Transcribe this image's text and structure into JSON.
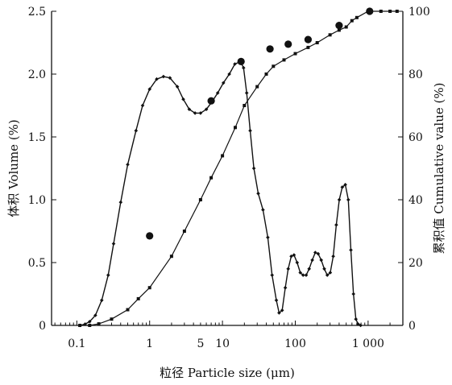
{
  "chart_data": {
    "type": "line",
    "title": "",
    "xlabel": "粒径 Particle size (μm)",
    "ylabel_left": "体积 Volume (%)",
    "ylabel_right": "累积值 Cumulative value (%)",
    "x_scale": "log",
    "xlim": [
      0.045,
      3000
    ],
    "ylim_left": [
      0,
      2.5
    ],
    "ylim_right": [
      0,
      100
    ],
    "grid": false,
    "legend": "none",
    "x_ticks": [
      {
        "value": 0.1,
        "label": "0.1"
      },
      {
        "value": 1,
        "label": "1"
      },
      {
        "value": 5,
        "label": "5"
      },
      {
        "value": 10,
        "label": "10"
      },
      {
        "value": 100,
        "label": "100"
      },
      {
        "value": 1000,
        "label": "1 000"
      }
    ],
    "y_left_ticks": [
      "0",
      "0.5",
      "1.0",
      "1.5",
      "2.0",
      "2.5"
    ],
    "y_left_tick_values": [
      0,
      0.5,
      1.0,
      1.5,
      2.0,
      2.5
    ],
    "y_right_ticks": [
      "0",
      "20",
      "40",
      "60",
      "80",
      "100"
    ],
    "y_right_tick_values": [
      0,
      20,
      40,
      60,
      80,
      100
    ],
    "series": [
      {
        "axis": "left",
        "style": "line-diamond-markers",
        "x": [
          0.11,
          0.13,
          0.15,
          0.18,
          0.22,
          0.27,
          0.32,
          0.4,
          0.5,
          0.65,
          0.8,
          1.0,
          1.25,
          1.55,
          1.9,
          2.4,
          2.9,
          3.5,
          4.2,
          5.0,
          6.0,
          7.2,
          8.6,
          10.3,
          12.4,
          14.8,
          17.7,
          19.5,
          21.5,
          24,
          27,
          31,
          36,
          42,
          48,
          55,
          60,
          66,
          73,
          80,
          88,
          96,
          106,
          117,
          128,
          141,
          155,
          171,
          188,
          206,
          227,
          250,
          275,
          302,
          332,
          366,
          402,
          442,
          486,
          535,
          580,
          630,
          680,
          730,
          790
        ],
        "y": [
          0.0,
          0.01,
          0.03,
          0.08,
          0.2,
          0.4,
          0.65,
          0.98,
          1.28,
          1.55,
          1.75,
          1.88,
          1.96,
          1.98,
          1.97,
          1.9,
          1.8,
          1.72,
          1.69,
          1.69,
          1.72,
          1.78,
          1.85,
          1.93,
          2.0,
          2.08,
          2.1,
          2.05,
          1.85,
          1.55,
          1.25,
          1.05,
          0.92,
          0.7,
          0.4,
          0.2,
          0.1,
          0.12,
          0.3,
          0.45,
          0.55,
          0.56,
          0.5,
          0.42,
          0.4,
          0.4,
          0.45,
          0.52,
          0.58,
          0.57,
          0.52,
          0.45,
          0.4,
          0.42,
          0.55,
          0.8,
          1.0,
          1.1,
          1.12,
          1.0,
          0.6,
          0.25,
          0.05,
          0.01,
          0.0
        ]
      },
      {
        "axis": "right",
        "style": "square-markers",
        "x": [
          0.11,
          0.15,
          0.2,
          0.3,
          0.5,
          0.7,
          1.0,
          2.0,
          3.0,
          5.0,
          7.0,
          10,
          15,
          20,
          30,
          40,
          50,
          70,
          100,
          150,
          200,
          300,
          400,
          500,
          600,
          700,
          1000,
          1500,
          2000,
          2500
        ],
        "y": [
          0,
          0,
          0.5,
          2,
          5,
          8.5,
          12,
          22,
          30,
          40,
          47,
          54,
          63,
          70,
          76,
          80,
          82.5,
          84.5,
          86.5,
          88.5,
          90,
          92.5,
          94,
          95,
          97,
          98,
          100,
          100,
          100,
          100
        ]
      },
      {
        "axis": "right",
        "style": "large-dots",
        "x": [
          1,
          7,
          18,
          45,
          80,
          150,
          400,
          1050
        ],
        "y": [
          28.5,
          71.5,
          84,
          88,
          89.5,
          91,
          95.5,
          100
        ]
      }
    ]
  }
}
